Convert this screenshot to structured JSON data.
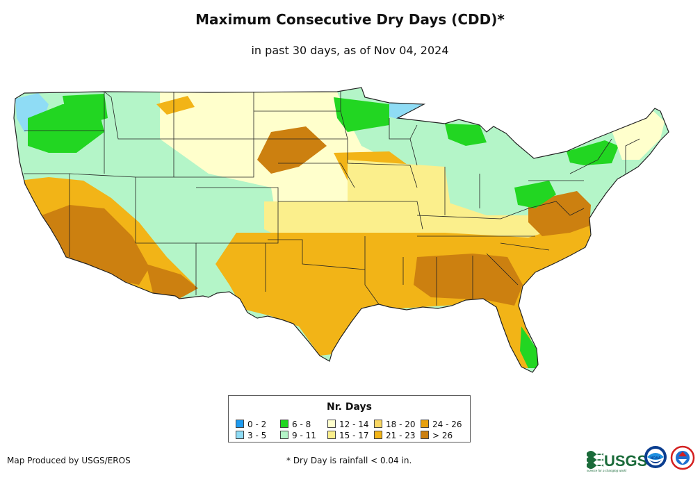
{
  "title": "Maximum Consecutive Dry Days (CDD)*",
  "subtitle": "in past 30 days, as of Nov 04, 2024",
  "legend": {
    "title": "Nr. Days",
    "items": [
      {
        "label": "0 - 2",
        "color": "#1e9bf0"
      },
      {
        "label": "3 - 5",
        "color": "#8fdcf5"
      },
      {
        "label": "6 - 8",
        "color": "#22d622"
      },
      {
        "label": "9 - 11",
        "color": "#b4f5c8"
      },
      {
        "label": "12 - 14",
        "color": "#ffffcc"
      },
      {
        "label": "15 - 17",
        "color": "#fbef8c"
      },
      {
        "label": "18 - 20",
        "color": "#f9d763"
      },
      {
        "label": "21 - 23",
        "color": "#f2b417"
      },
      {
        "label": "24 - 26",
        "color": "#e8a10e"
      },
      {
        "label": "> 26",
        "color": "#cc8010"
      }
    ]
  },
  "footer": {
    "produced_by": "Map Produced by USGS/EROS",
    "footnote": "* Dry Day is rainfall < 0.04 in."
  },
  "logos": {
    "usgs": "USGS",
    "usgs_tagline": "science for a changing world",
    "noaa": "NOAA"
  },
  "icons": {
    "usgs": "usgs-logo-icon",
    "noaa": "noaa-logo-icon",
    "nws": "nws-logo-icon"
  }
}
